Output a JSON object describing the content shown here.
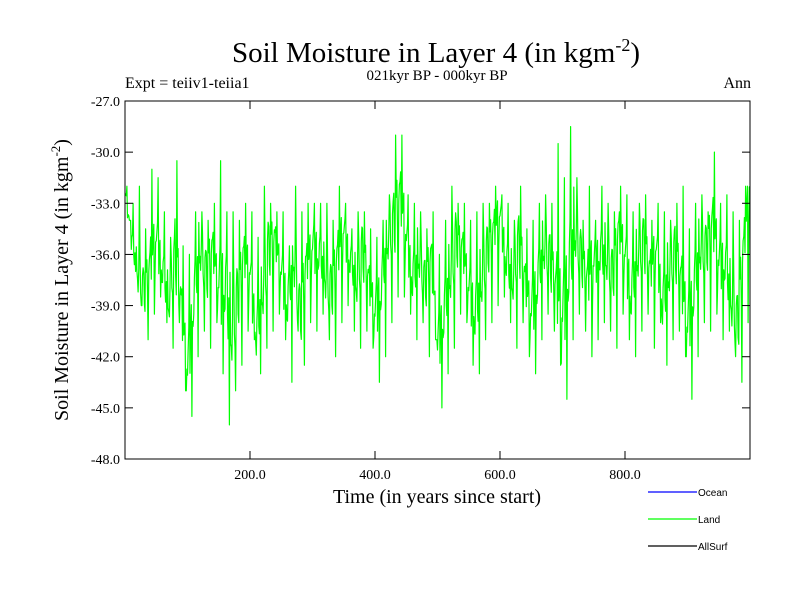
{
  "header": {
    "title_main": "Soil Moisture in Layer 4 (in kgm",
    "title_sup": "-2",
    "title_close": ")",
    "subtitle": "021kyr BP - 000kyr BP",
    "left_label": "Expt = teiiv1-teiia1",
    "right_label": "Ann"
  },
  "axes": {
    "xlabel": "Time (in years since start)",
    "ylabel_main": "Soil Moisture in Layer 4 (in kgm",
    "ylabel_sup": "-2",
    "ylabel_close": ")",
    "xticks": [
      "200.0",
      "400.0",
      "600.0",
      "800.0"
    ],
    "yticks": [
      "-27.0",
      "-30.0",
      "-33.0",
      "-36.0",
      "-39.0",
      "-42.0",
      "-45.0",
      "-48.0"
    ]
  },
  "legend": [
    {
      "label": "Ocean",
      "color": "#0000ff"
    },
    {
      "label": "Land",
      "color": "#00ff00"
    },
    {
      "label": "AllSurf",
      "color": "#000000"
    }
  ],
  "chart_data": {
    "type": "line",
    "xlim": [
      0,
      1000
    ],
    "ylim": [
      -48,
      -27
    ],
    "grid": false,
    "legend_position": "bottom-right",
    "series": [
      {
        "name": "Land",
        "color": "#00ff00",
        "x": [
          0,
          10,
          20,
          30,
          40,
          50,
          60,
          70,
          80,
          90,
          100,
          110,
          120,
          130,
          140,
          150,
          160,
          170,
          180,
          190,
          200,
          210,
          220,
          230,
          240,
          250,
          260,
          270,
          280,
          290,
          300,
          310,
          320,
          330,
          340,
          350,
          360,
          370,
          380,
          390,
          400,
          410,
          420,
          430,
          440,
          450,
          460,
          470,
          480,
          490,
          500,
          510,
          520,
          530,
          540,
          550,
          560,
          570,
          580,
          590,
          600,
          610,
          620,
          630,
          640,
          650,
          660,
          670,
          680,
          690,
          700,
          710,
          720,
          730,
          740,
          750,
          760,
          770,
          780,
          790,
          800,
          810,
          820,
          830,
          840,
          850,
          860,
          870,
          880,
          890,
          900,
          910,
          920,
          930,
          940,
          950,
          960,
          970,
          980,
          990,
          1000
        ],
        "y": [
          -32.5,
          -35.0,
          -36.8,
          -38.5,
          -37.0,
          -35.5,
          -36.5,
          -38.8,
          -36.0,
          -39.5,
          -43.5,
          -38.0,
          -35.5,
          -37.5,
          -36.0,
          -38.5,
          -37.0,
          -40.5,
          -39.0,
          -36.5,
          -37.5,
          -40.5,
          -38.0,
          -36.0,
          -35.5,
          -37.5,
          -38.5,
          -36.0,
          -40.0,
          -37.0,
          -36.0,
          -35.5,
          -37.0,
          -38.5,
          -36.5,
          -35.0,
          -36.0,
          -37.5,
          -36.0,
          -38.0,
          -40.0,
          -37.5,
          -35.0,
          -34.5,
          -33.0,
          -35.5,
          -37.0,
          -36.0,
          -38.0,
          -36.5,
          -42.0,
          -39.0,
          -37.0,
          -35.5,
          -36.0,
          -38.5,
          -39.0,
          -37.5,
          -36.0,
          -35.0,
          -34.0,
          -36.0,
          -37.5,
          -35.5,
          -38.0,
          -40.0,
          -37.0,
          -35.5,
          -36.5,
          -38.5,
          -40.5,
          -36.0,
          -34.5,
          -36.5,
          -38.0,
          -37.0,
          -35.5,
          -36.0,
          -37.5,
          -35.0,
          -36.5,
          -38.0,
          -36.0,
          -35.5,
          -37.5,
          -36.0,
          -38.5,
          -37.0,
          -36.0,
          -38.0,
          -41.0,
          -37.5,
          -35.5,
          -36.0,
          -34.5,
          -37.0,
          -36.0,
          -38.5,
          -40.5,
          -36.0,
          -32.0
        ],
        "y_max": [
          -32.0,
          -33.0,
          -32.0,
          -34.5,
          -31.0,
          -31.5,
          -33.5,
          -35.0,
          -30.5,
          -35.5,
          -36.0,
          -33.5,
          -33.5,
          -34.0,
          -33.0,
          -30.5,
          -33.5,
          -33.5,
          -34.0,
          -33.0,
          -33.5,
          -35.0,
          -32.0,
          -33.0,
          -33.5,
          -33.5,
          -35.5,
          -32.0,
          -33.5,
          -33.0,
          -33.0,
          -33.0,
          -33.0,
          -34.0,
          -32.0,
          -33.0,
          -34.5,
          -33.5,
          -33.5,
          -34.5,
          -35.0,
          -34.0,
          -32.5,
          -29.0,
          -29.0,
          -32.5,
          -33.0,
          -33.5,
          -34.5,
          -33.5,
          -36.0,
          -34.0,
          -32.0,
          -33.0,
          -33.0,
          -34.0,
          -33.5,
          -33.0,
          -33.0,
          -32.0,
          -32.5,
          -33.0,
          -34.0,
          -32.0,
          -34.5,
          -34.0,
          -33.0,
          -32.5,
          -33.0,
          -29.5,
          -31.5,
          -28.5,
          -31.5,
          -34.0,
          -32.0,
          -34.0,
          -32.0,
          -33.0,
          -33.5,
          -32.0,
          -32.5,
          -33.5,
          -33.0,
          -32.5,
          -34.0,
          -33.0,
          -33.5,
          -34.0,
          -33.0,
          -32.0,
          -34.5,
          -33.0,
          -32.5,
          -33.5,
          -30.0,
          -33.0,
          -32.5,
          -33.5,
          -34.0,
          -32.0,
          -30.0
        ],
        "y_min": [
          -34.0,
          -37.0,
          -39.0,
          -41.0,
          -39.5,
          -38.5,
          -40.0,
          -41.5,
          -40.0,
          -44.0,
          -45.5,
          -42.0,
          -40.5,
          -41.5,
          -40.0,
          -43.0,
          -46.0,
          -44.0,
          -42.5,
          -40.5,
          -41.0,
          -43.0,
          -41.5,
          -40.5,
          -39.5,
          -41.0,
          -43.5,
          -40.5,
          -42.5,
          -40.0,
          -40.5,
          -39.5,
          -41.0,
          -42.0,
          -40.0,
          -39.0,
          -40.5,
          -41.5,
          -40.5,
          -41.5,
          -43.5,
          -42.0,
          -40.0,
          -38.5,
          -38.5,
          -39.5,
          -41.0,
          -40.0,
          -42.0,
          -41.0,
          -45.0,
          -43.0,
          -41.5,
          -39.5,
          -40.0,
          -42.5,
          -43.0,
          -41.0,
          -40.0,
          -39.0,
          -38.5,
          -40.0,
          -41.5,
          -40.0,
          -42.0,
          -43.0,
          -41.0,
          -39.5,
          -40.5,
          -42.5,
          -44.5,
          -41.0,
          -39.5,
          -40.5,
          -42.0,
          -41.0,
          -40.0,
          -40.5,
          -41.5,
          -39.5,
          -41.0,
          -42.0,
          -40.5,
          -39.5,
          -41.5,
          -40.0,
          -42.5,
          -41.0,
          -40.5,
          -42.0,
          -44.5,
          -42.0,
          -40.0,
          -40.5,
          -39.5,
          -41.0,
          -40.5,
          -42.0,
          -43.5,
          -40.0,
          -35.0
        ]
      }
    ]
  }
}
